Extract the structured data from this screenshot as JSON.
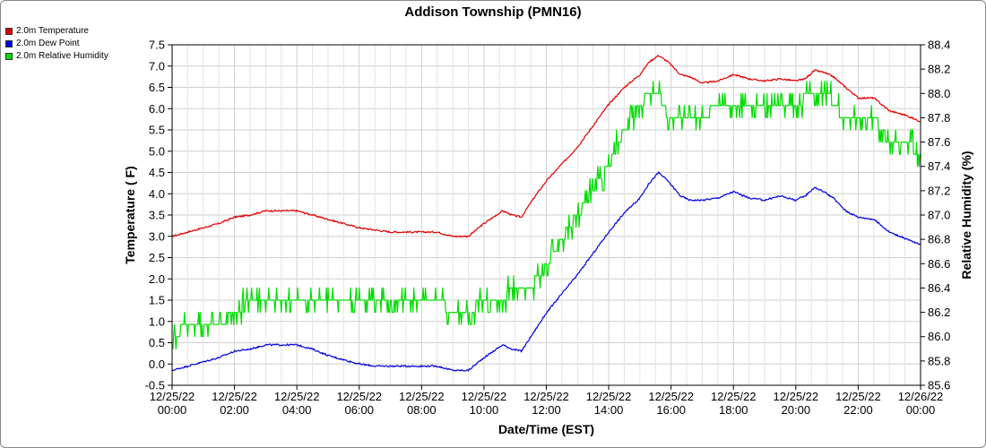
{
  "chart_data": {
    "type": "line",
    "title": "Addison Township (PMN16)",
    "xlabel": "Date/Time (EST)",
    "ylabel": "Temperature ( F)",
    "y2label": "Relative Humidity (%)",
    "grid": true,
    "legend_position": "top-left",
    "x_ticks": [
      {
        "hour": 0,
        "date": "12/25/22",
        "time": "00:00"
      },
      {
        "hour": 2,
        "date": "12/25/22",
        "time": "02:00"
      },
      {
        "hour": 4,
        "date": "12/25/22",
        "time": "04:00"
      },
      {
        "hour": 6,
        "date": "12/25/22",
        "time": "06:00"
      },
      {
        "hour": 8,
        "date": "12/25/22",
        "time": "08:00"
      },
      {
        "hour": 10,
        "date": "12/25/22",
        "time": "10:00"
      },
      {
        "hour": 12,
        "date": "12/25/22",
        "time": "12:00"
      },
      {
        "hour": 14,
        "date": "12/25/22",
        "time": "14:00"
      },
      {
        "hour": 16,
        "date": "12/25/22",
        "time": "16:00"
      },
      {
        "hour": 18,
        "date": "12/25/22",
        "time": "18:00"
      },
      {
        "hour": 20,
        "date": "12/25/22",
        "time": "20:00"
      },
      {
        "hour": 22,
        "date": "12/25/22",
        "time": "22:00"
      },
      {
        "hour": 24,
        "date": "12/26/22",
        "time": "00:00"
      }
    ],
    "xlim": [
      0,
      24
    ],
    "ylim": [
      -0.5,
      7.5
    ],
    "y_ticks": [
      "-0.5",
      "0.0",
      "0.5",
      "1.0",
      "1.5",
      "2.0",
      "2.5",
      "3.0",
      "3.5",
      "4.0",
      "4.5",
      "5.0",
      "5.5",
      "6.0",
      "6.5",
      "7.0",
      "7.5"
    ],
    "y2lim": [
      85.6,
      88.4
    ],
    "y2_ticks": [
      "85.6",
      "85.8",
      "86.0",
      "86.2",
      "86.4",
      "86.6",
      "86.8",
      "87.0",
      "87.2",
      "87.4",
      "87.6",
      "87.8",
      "88.0",
      "88.2",
      "88.4"
    ],
    "series": [
      {
        "name": "2.0m Temperature",
        "color": "#e00000",
        "axis": "left",
        "x": [
          0,
          0.5,
          1,
          1.5,
          2,
          2.5,
          3,
          3.5,
          4,
          4.5,
          5,
          5.5,
          6,
          6.5,
          7,
          7.5,
          8,
          8.5,
          9,
          9.5,
          10,
          10.3,
          10.6,
          10.9,
          11.2,
          11.6,
          12,
          12.5,
          13,
          13.5,
          14,
          14.5,
          15,
          15.3,
          15.6,
          15.9,
          16.3,
          16.6,
          17,
          17.5,
          18,
          18.5,
          19,
          19.5,
          20,
          20.3,
          20.6,
          20.9,
          21.2,
          21.6,
          22,
          22.5,
          23,
          23.5,
          24
        ],
        "y": [
          3.0,
          3.1,
          3.2,
          3.3,
          3.45,
          3.5,
          3.6,
          3.6,
          3.6,
          3.5,
          3.4,
          3.3,
          3.2,
          3.15,
          3.1,
          3.1,
          3.1,
          3.1,
          3.0,
          3.0,
          3.3,
          3.45,
          3.6,
          3.5,
          3.45,
          3.9,
          4.3,
          4.7,
          5.1,
          5.6,
          6.1,
          6.5,
          6.8,
          7.1,
          7.25,
          7.1,
          6.8,
          6.75,
          6.6,
          6.65,
          6.8,
          6.7,
          6.65,
          6.7,
          6.65,
          6.7,
          6.9,
          6.85,
          6.75,
          6.5,
          6.25,
          6.25,
          5.95,
          5.85,
          5.7
        ]
      },
      {
        "name": "2.0m Dew Point",
        "color": "#0000e0",
        "axis": "left",
        "x": [
          0,
          0.5,
          1,
          1.5,
          2,
          2.5,
          3,
          3.5,
          4,
          4.5,
          5,
          5.5,
          6,
          6.5,
          7,
          7.5,
          8,
          8.5,
          9,
          9.5,
          10,
          10.3,
          10.6,
          10.9,
          11.2,
          11.6,
          12,
          12.5,
          13,
          13.5,
          14,
          14.5,
          15,
          15.3,
          15.6,
          15.9,
          16.3,
          16.6,
          17,
          17.5,
          18,
          18.5,
          19,
          19.5,
          20,
          20.3,
          20.6,
          20.9,
          21.2,
          21.6,
          22,
          22.5,
          23,
          23.5,
          24
        ],
        "y": [
          -0.15,
          -0.05,
          0.05,
          0.15,
          0.3,
          0.35,
          0.45,
          0.45,
          0.45,
          0.35,
          0.2,
          0.1,
          0.0,
          -0.05,
          -0.05,
          -0.05,
          -0.05,
          -0.05,
          -0.15,
          -0.15,
          0.15,
          0.3,
          0.45,
          0.35,
          0.3,
          0.75,
          1.2,
          1.65,
          2.1,
          2.6,
          3.1,
          3.55,
          3.9,
          4.25,
          4.5,
          4.3,
          3.95,
          3.85,
          3.85,
          3.9,
          4.05,
          3.9,
          3.85,
          3.95,
          3.85,
          3.95,
          4.15,
          4.05,
          3.9,
          3.6,
          3.45,
          3.4,
          3.1,
          2.95,
          2.8
        ]
      },
      {
        "name": "2.0m Relative Humidity",
        "color": "#00dd00",
        "axis": "right",
        "x": [
          0,
          0.5,
          1,
          1.5,
          2,
          2.5,
          3,
          3.5,
          4,
          4.5,
          5,
          5.5,
          6,
          6.5,
          7,
          7.5,
          8,
          8.5,
          9,
          9.5,
          10,
          10.5,
          11,
          11.5,
          12,
          12.5,
          13,
          13.5,
          14,
          14.5,
          15,
          15.3,
          15.6,
          15.9,
          16.3,
          16.6,
          17,
          17.5,
          18,
          18.5,
          19,
          19.5,
          20,
          20.5,
          21,
          21.5,
          22,
          22.5,
          23,
          23.5,
          24
        ],
        "y": [
          86.0,
          86.1,
          86.1,
          86.1,
          86.2,
          86.3,
          86.3,
          86.3,
          86.3,
          86.3,
          86.3,
          86.3,
          86.3,
          86.3,
          86.3,
          86.3,
          86.3,
          86.3,
          86.2,
          86.2,
          86.3,
          86.3,
          86.4,
          86.4,
          86.6,
          86.8,
          87.0,
          87.2,
          87.4,
          87.7,
          87.9,
          88.0,
          88.0,
          87.8,
          87.8,
          87.8,
          87.8,
          87.9,
          87.9,
          87.9,
          87.9,
          87.9,
          87.9,
          88.0,
          88.0,
          87.8,
          87.8,
          87.8,
          87.6,
          87.6,
          87.5
        ]
      }
    ]
  }
}
